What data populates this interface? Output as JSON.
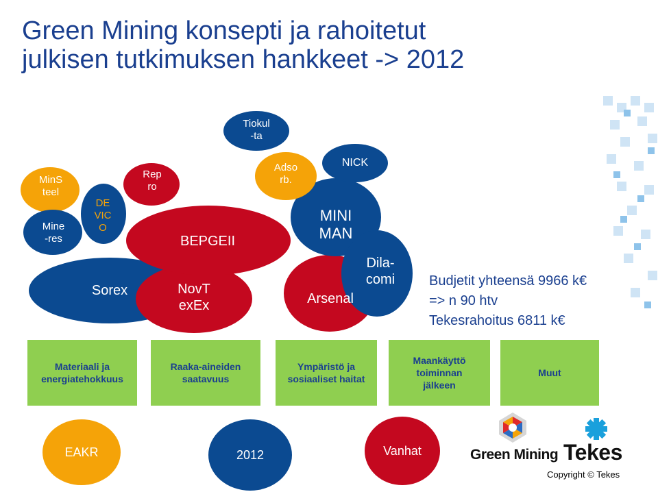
{
  "title": {
    "line1": "Green Mining konsepti ja rahoitetut",
    "line2": "julkisen tutkimuksen hankkeet -> 2012"
  },
  "projects": {
    "minsteel": "MinS\nteel",
    "mineres": "Mine\n-res",
    "devico": "DE\nVIC\nO",
    "sorex": "Sorex",
    "reppro": "Rep\nro",
    "bepgeii": "BEPGEII",
    "novtexex": "NovT\nexEx",
    "tiokulta": "Tiokul\n-ta",
    "adsorb": "Adso\nrb.",
    "nick": "NICK",
    "miniman": "MINI\nMAN",
    "arsenal": "Arsenal",
    "dilacomi": "Dila-\ncomi"
  },
  "budget": {
    "line1": "Budjetit yhteensä 9966 k€",
    "line2": "=> n 90 htv",
    "line3": "Tekesrahoitus 6811 k€"
  },
  "categories": [
    "Materiaali ja\nenergiatehokkuus",
    "Raaka-aineiden\nsaatavuus",
    "Ympäristö ja\nsosiaaliset haitat",
    "Maankäyttö\ntoiminnan\njälkeen",
    "Muut"
  ],
  "legend": {
    "eakr": "EAKR",
    "y2012": "2012",
    "vanhat": "Vanhat"
  },
  "logos": {
    "green_mining": "Green Mining",
    "tekes": "Tekes"
  },
  "copyright": "Copyright © Tekes",
  "colors": {
    "blue": "#0b4a91",
    "red": "#c4081f",
    "orange": "#f5a308",
    "green": "#8fcf50",
    "title": "#1a3f8f"
  }
}
